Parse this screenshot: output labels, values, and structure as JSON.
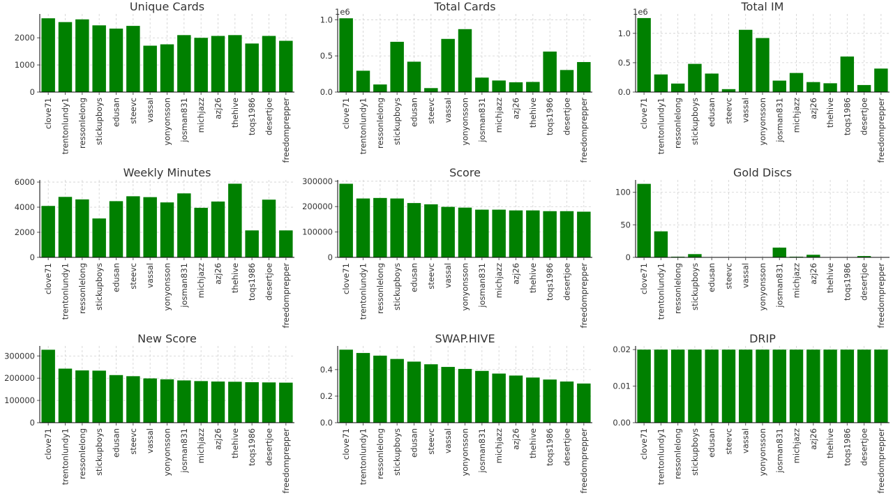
{
  "chart_data": [
    {
      "type": "bar",
      "title": "Unique Cards",
      "categories": [
        "clove71",
        "trentonlundy1",
        "ressonlelong",
        "stickupboys",
        "edusan",
        "steevc",
        "vassal",
        "yonyonsson",
        "josman831",
        "michjazz",
        "azj26",
        "thehive",
        "toqs1986",
        "desertjoe",
        "freedomprepper"
      ],
      "values": [
        2720,
        2580,
        2680,
        2460,
        2340,
        2440,
        1710,
        1760,
        2100,
        2000,
        2070,
        2100,
        1790,
        2070,
        1890
      ],
      "ylim": [
        0,
        2880
      ],
      "yticks": [
        0,
        1000,
        2000
      ],
      "ytick_labels": [
        "0",
        "1000",
        "2000"
      ],
      "offset_label": "",
      "grid": true,
      "color": "#008000"
    },
    {
      "type": "bar",
      "title": "Total Cards",
      "categories": [
        "clove71",
        "trentonlundy1",
        "ressonlelong",
        "stickupboys",
        "edusan",
        "steevc",
        "vassal",
        "yonyonsson",
        "josman831",
        "michjazz",
        "azj26",
        "thehive",
        "toqs1986",
        "desertjoe",
        "freedomprepper"
      ],
      "values": [
        1020000,
        295000,
        105000,
        695000,
        420000,
        55000,
        735000,
        870000,
        200000,
        160000,
        135000,
        140000,
        560000,
        305000,
        415000
      ],
      "ylim": [
        0,
        1080000
      ],
      "yticks": [
        0,
        500000,
        1000000
      ],
      "ytick_labels": [
        "0.0",
        "0.5",
        "1.0"
      ],
      "offset_label": "1e6",
      "grid": true,
      "color": "#008000"
    },
    {
      "type": "bar",
      "title": "Total IM",
      "categories": [
        "clove71",
        "trentonlundy1",
        "ressonlelong",
        "stickupboys",
        "edusan",
        "steevc",
        "vassal",
        "yonyonsson",
        "josman831",
        "michjazz",
        "azj26",
        "thehive",
        "toqs1986",
        "desertjoe",
        "freedomprepper"
      ],
      "values": [
        1260000,
        300000,
        145000,
        480000,
        315000,
        50000,
        1060000,
        920000,
        195000,
        325000,
        170000,
        150000,
        605000,
        120000,
        400000
      ],
      "ylim": [
        0,
        1330000
      ],
      "yticks": [
        0,
        500000,
        1000000
      ],
      "ytick_labels": [
        "0.0",
        "0.5",
        "1.0"
      ],
      "offset_label": "1e6",
      "grid": true,
      "color": "#008000"
    },
    {
      "type": "bar",
      "title": "Weekly Minutes",
      "categories": [
        "clove71",
        "trentonlundy1",
        "ressonlelong",
        "stickupboys",
        "edusan",
        "steevc",
        "vassal",
        "yonyonsson",
        "josman831",
        "michjazz",
        "azj26",
        "thehive",
        "toqs1986",
        "desertjoe",
        "freedomprepper"
      ],
      "values": [
        4100,
        4820,
        4620,
        3100,
        4480,
        4870,
        4800,
        4380,
        5100,
        3950,
        4450,
        5870,
        2150,
        4600,
        2150
      ],
      "ylim": [
        0,
        6170
      ],
      "yticks": [
        0,
        2000,
        4000,
        6000
      ],
      "ytick_labels": [
        "0",
        "2000",
        "4000",
        "6000"
      ],
      "offset_label": "",
      "grid": true,
      "color": "#008000"
    },
    {
      "type": "bar",
      "title": "Score",
      "categories": [
        "clove71",
        "trentonlundy1",
        "ressonlelong",
        "stickupboys",
        "edusan",
        "steevc",
        "vassal",
        "yonyonsson",
        "josman831",
        "michjazz",
        "azj26",
        "thehive",
        "toqs1986",
        "desertjoe",
        "freedomprepper"
      ],
      "values": [
        290000,
        232000,
        234000,
        232000,
        214000,
        209000,
        199000,
        196000,
        188000,
        188000,
        185000,
        185000,
        182000,
        182000,
        180000
      ],
      "ylim": [
        0,
        305000
      ],
      "yticks": [
        0,
        100000,
        200000,
        300000
      ],
      "ytick_labels": [
        "0",
        "100000",
        "200000",
        "300000"
      ],
      "offset_label": "",
      "grid": true,
      "color": "#008000"
    },
    {
      "type": "bar",
      "title": "Gold Discs",
      "categories": [
        "clove71",
        "trentonlundy1",
        "ressonlelong",
        "stickupboys",
        "edusan",
        "steevc",
        "vassal",
        "yonyonsson",
        "josman831",
        "michjazz",
        "azj26",
        "thehive",
        "toqs1986",
        "desertjoe",
        "freedomprepper"
      ],
      "values": [
        113,
        40,
        1,
        5,
        0,
        0,
        0,
        0,
        15,
        1,
        4,
        0,
        0,
        2,
        0
      ],
      "ylim": [
        0,
        119
      ],
      "yticks": [
        0,
        50,
        100
      ],
      "ytick_labels": [
        "0",
        "50",
        "100"
      ],
      "offset_label": "",
      "grid": true,
      "color": "#008000"
    },
    {
      "type": "bar",
      "title": "New Score",
      "categories": [
        "clove71",
        "trentonlundy1",
        "ressonlelong",
        "stickupboys",
        "edusan",
        "steevc",
        "vassal",
        "yonyonsson",
        "josman831",
        "michjazz",
        "azj26",
        "thehive",
        "toqs1986",
        "desertjoe",
        "freedomprepper"
      ],
      "values": [
        328000,
        243000,
        235000,
        234000,
        214000,
        209000,
        199000,
        195000,
        190000,
        187000,
        185000,
        184000,
        182000,
        181000,
        180000
      ],
      "ylim": [
        0,
        345000
      ],
      "yticks": [
        0,
        100000,
        200000,
        300000
      ],
      "ytick_labels": [
        "0",
        "100000",
        "200000",
        "300000"
      ],
      "offset_label": "",
      "grid": true,
      "color": "#008000"
    },
    {
      "type": "bar",
      "title": "SWAP.HIVE",
      "categories": [
        "clove71",
        "trentonlundy1",
        "ressonlelong",
        "stickupboys",
        "edusan",
        "steevc",
        "vassal",
        "yonyonsson",
        "josman831",
        "michjazz",
        "azj26",
        "thehive",
        "toqs1986",
        "desertjoe",
        "freedomprepper"
      ],
      "values": [
        0.55,
        0.525,
        0.505,
        0.48,
        0.46,
        0.44,
        0.42,
        0.405,
        0.39,
        0.37,
        0.355,
        0.34,
        0.325,
        0.31,
        0.295
      ],
      "ylim": [
        0,
        0.578
      ],
      "yticks": [
        0,
        0.2,
        0.4
      ],
      "ytick_labels": [
        "0.0",
        "0.2",
        "0.4"
      ],
      "offset_label": "",
      "grid": true,
      "color": "#008000"
    },
    {
      "type": "bar",
      "title": "DRIP",
      "categories": [
        "clove71",
        "trentonlundy1",
        "ressonlelong",
        "stickupboys",
        "edusan",
        "steevc",
        "vassal",
        "yonyonsson",
        "josman831",
        "michjazz",
        "azj26",
        "thehive",
        "toqs1986",
        "desertjoe",
        "freedomprepper"
      ],
      "values": [
        0.02,
        0.02,
        0.02,
        0.02,
        0.02,
        0.02,
        0.02,
        0.02,
        0.02,
        0.02,
        0.02,
        0.02,
        0.02,
        0.02,
        0.02
      ],
      "ylim": [
        0,
        0.021
      ],
      "yticks": [
        0,
        0.01,
        0.02
      ],
      "ytick_labels": [
        "0.00",
        "0.01",
        "0.02"
      ],
      "offset_label": "",
      "grid": true,
      "color": "#008000"
    }
  ]
}
